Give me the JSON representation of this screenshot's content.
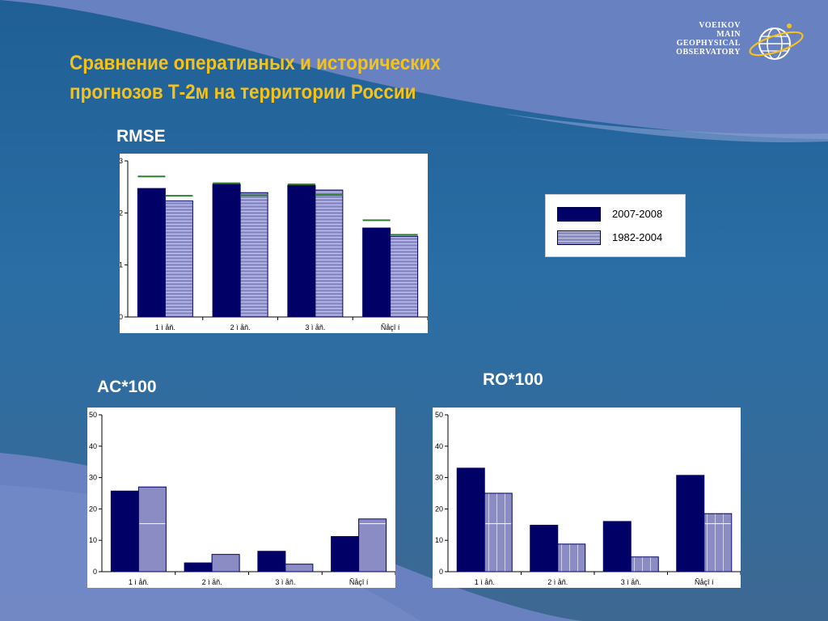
{
  "title": {
    "line1": "Сравнение оперативных и исторических",
    "line2": "прогнозов Т-2м на территории России"
  },
  "logo": {
    "lines": [
      "VOEIKOV",
      "MAIN",
      "GEOPHYSICAL",
      "OBSERVATORY"
    ],
    "icon": "globe-orbit-icon"
  },
  "legend": {
    "items": [
      {
        "label": "2007-2008",
        "pattern": "solid"
      },
      {
        "label": "1982-2004",
        "pattern": "hatched"
      }
    ]
  },
  "colors": {
    "series1": "#000066",
    "series2": "#8c8cc4",
    "hatch": "#ffffff",
    "marker": "#2e7d32",
    "title": "#f5c21b"
  },
  "chart_data": [
    {
      "type": "bar",
      "title": "RMSE",
      "categories": [
        "1 ì åñ.",
        "2 ì åñ.",
        "3 ì åñ.",
        "Ñåçî í"
      ],
      "ylim": [
        0,
        3
      ],
      "yticks": [
        0,
        1,
        2,
        3
      ],
      "series": [
        {
          "values": [
            2.47,
            2.55,
            2.53,
            1.71
          ],
          "markers": [
            2.7,
            2.57,
            2.55,
            1.86
          ]
        },
        {
          "values": [
            2.23,
            2.39,
            2.44,
            1.55
          ],
          "markers": [
            2.33,
            2.34,
            2.35,
            1.58
          ]
        }
      ],
      "pattern": "hatch",
      "grid": false,
      "legend": "right"
    },
    {
      "type": "bar",
      "title": "AC*100",
      "categories": [
        "1 ì åñ.",
        "2 ì åñ.",
        "3 ì åñ.",
        "Ñåçî í"
      ],
      "ylim": [
        0,
        50
      ],
      "yticks": [
        0,
        10,
        20,
        30,
        40,
        50
      ],
      "series": [
        {
          "values": [
            25.7,
            2.8,
            6.5,
            11.2
          ]
        },
        {
          "values": [
            27.0,
            5.5,
            2.4,
            16.8
          ],
          "markers": [
            15.3,
            null,
            null,
            15.3
          ]
        }
      ],
      "pattern": "plain",
      "grid": false
    },
    {
      "type": "bar",
      "title": "RO*100",
      "categories": [
        "1 ì åñ.",
        "2 ì åñ.",
        "3 ì åñ.",
        "Ñåçî í"
      ],
      "ylim": [
        0,
        50
      ],
      "yticks": [
        0,
        10,
        20,
        30,
        40,
        50
      ],
      "series": [
        {
          "values": [
            33.0,
            14.8,
            16.0,
            30.7
          ]
        },
        {
          "values": [
            25.0,
            8.8,
            4.7,
            18.5
          ],
          "markers": [
            15.3,
            null,
            null,
            15.3
          ]
        }
      ],
      "pattern": "vertical",
      "grid": false
    }
  ]
}
